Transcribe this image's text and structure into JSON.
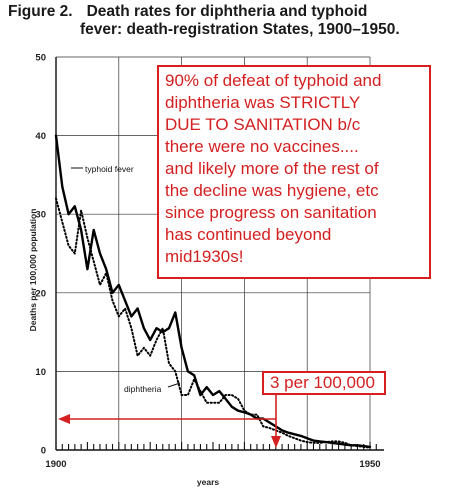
{
  "figure": {
    "lead": "Figure 2.",
    "title_line1": "Death rates for diphtheria and typhoid",
    "title_line2": "fever: death-registration States, 1900–1950."
  },
  "chart_data": {
    "type": "line",
    "xlabel": "years",
    "ylabel": "Deaths per 100,000 population",
    "xlim": [
      1900,
      1952
    ],
    "ylim": [
      0,
      50
    ],
    "x_tick_labels": [
      "1900",
      "1950"
    ],
    "y_tick_labels": [
      "0",
      "10",
      "20",
      "30",
      "40",
      "50"
    ],
    "grid": true,
    "series": [
      {
        "name": "typhoid fever",
        "style": "solid",
        "color": "#000000",
        "x": [
          1900,
          1901,
          1902,
          1903,
          1904,
          1905,
          1906,
          1907,
          1908,
          1909,
          1910,
          1911,
          1912,
          1913,
          1914,
          1915,
          1916,
          1917,
          1918,
          1919,
          1920,
          1921,
          1922,
          1923,
          1924,
          1925,
          1926,
          1927,
          1928,
          1929,
          1930,
          1931,
          1932,
          1933,
          1934,
          1935,
          1936,
          1937,
          1938,
          1939,
          1940,
          1941,
          1942,
          1943,
          1944,
          1945,
          1946,
          1947,
          1948,
          1949,
          1950
        ],
        "y": [
          40,
          33.5,
          30,
          31,
          28,
          23,
          28,
          25,
          23,
          20,
          21,
          19,
          17,
          18,
          15.5,
          14,
          15.5,
          15,
          15.5,
          17.5,
          13,
          10,
          9.5,
          7,
          8,
          7,
          7.5,
          6.5,
          5.5,
          5,
          4.8,
          4.5,
          4,
          4,
          3.5,
          3,
          2.5,
          2.2,
          2,
          1.8,
          1.5,
          1.2,
          1.1,
          1,
          0.9,
          0.8,
          0.7,
          0.6,
          0.6,
          0.5,
          0.4
        ]
      },
      {
        "name": "diphtheria",
        "style": "dotted",
        "color": "#000000",
        "x": [
          1900,
          1901,
          1902,
          1903,
          1904,
          1905,
          1906,
          1907,
          1908,
          1909,
          1910,
          1911,
          1912,
          1913,
          1914,
          1915,
          1916,
          1917,
          1918,
          1919,
          1920,
          1921,
          1922,
          1923,
          1924,
          1925,
          1926,
          1927,
          1928,
          1929,
          1930,
          1931,
          1932,
          1933,
          1934,
          1935,
          1936,
          1937,
          1938,
          1939,
          1940,
          1941,
          1942,
          1943,
          1944,
          1945,
          1946,
          1947,
          1948,
          1949,
          1950
        ],
        "y": [
          32,
          29,
          26,
          25,
          30.5,
          27,
          24,
          21,
          22.5,
          19,
          17,
          18,
          15.5,
          12,
          13,
          12,
          14,
          15.5,
          11,
          10,
          7,
          7,
          9,
          7.5,
          6,
          6,
          6,
          7,
          7,
          6.5,
          5,
          4.5,
          4.5,
          3,
          2.8,
          2.5,
          2.2,
          1.8,
          1.5,
          1.2,
          1,
          0.9,
          0.9,
          1,
          1.1,
          1.1,
          0.9,
          0.6,
          0.5,
          0.4,
          0.3
        ]
      }
    ]
  },
  "annotations": {
    "note_lines": [
      "90% of defeat of typhoid and",
      "diphtheria was STRICTLY",
      "DUE TO SANITATION b/c",
      "there were no vaccines....",
      "and likely more of the rest of",
      "the decline was hygiene, etc",
      "since progress on sanitation",
      "has continued beyond",
      "mid1930s!"
    ],
    "marker_text": "3 per 100,000",
    "color": "#d42020"
  }
}
